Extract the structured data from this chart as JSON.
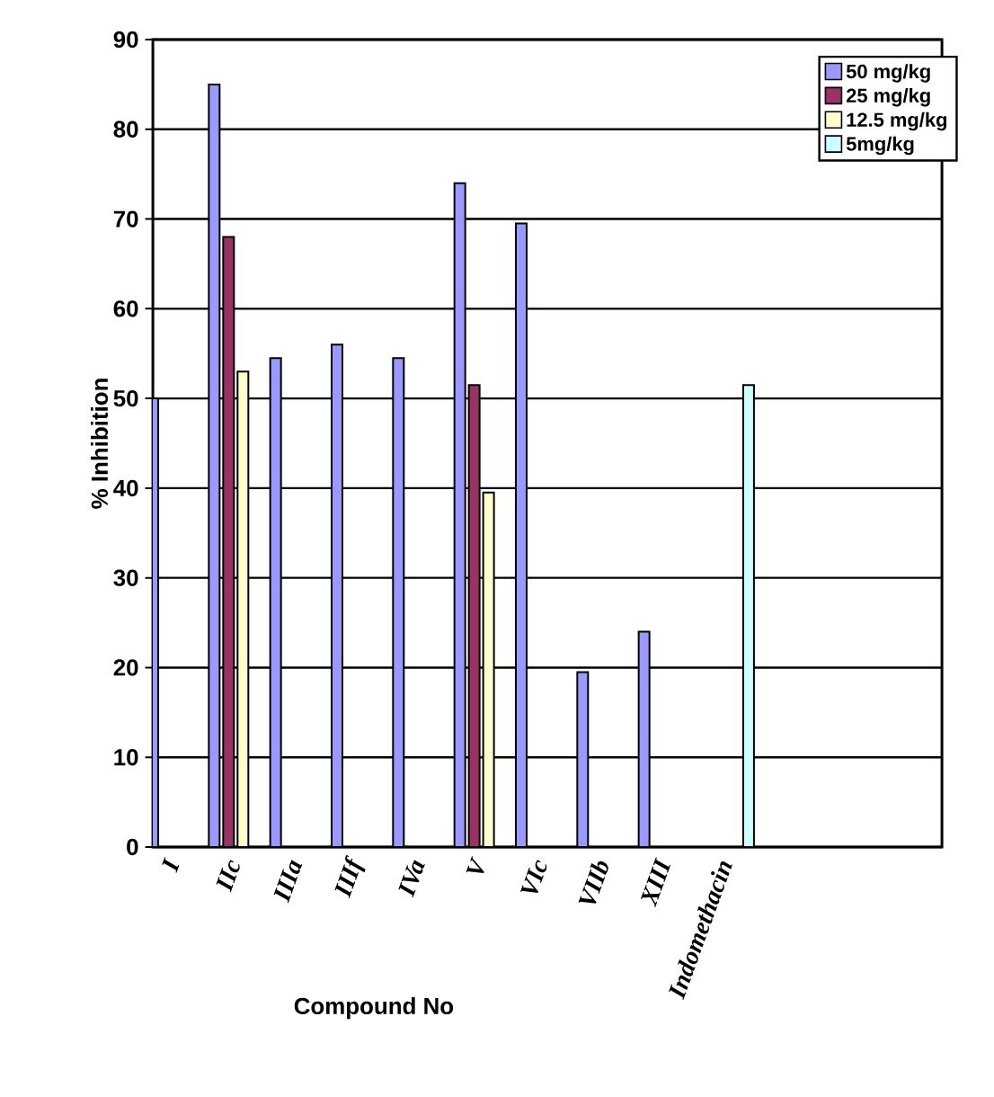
{
  "chart_data": {
    "type": "bar",
    "xlabel": "Compound No",
    "ylabel": "% Inhibition",
    "categories": [
      "I",
      "IIc",
      "IIIa",
      "IIIf",
      "IVa",
      "V",
      "VIc",
      "VIIb",
      "XIII",
      "Indomethacin"
    ],
    "series": [
      {
        "name": "50 mg/kg",
        "color": "#9999ff",
        "values": [
          50,
          85,
          54.5,
          56,
          54.5,
          74,
          69.5,
          19.5,
          24,
          null
        ]
      },
      {
        "name": "25 mg/kg",
        "color": "#993366",
        "values": [
          null,
          68,
          null,
          null,
          null,
          51.5,
          null,
          null,
          null,
          null
        ]
      },
      {
        "name": "12.5 mg/kg",
        "color": "#ffffcc",
        "values": [
          null,
          53,
          null,
          null,
          null,
          39.5,
          null,
          null,
          null,
          null
        ]
      },
      {
        "name": "5mg/kg",
        "color": "#ccffff",
        "values": [
          null,
          null,
          null,
          null,
          null,
          null,
          null,
          null,
          null,
          51.5
        ]
      }
    ],
    "ylim": [
      0,
      90
    ],
    "yticks": [
      0,
      10,
      20,
      30,
      40,
      50,
      60,
      70,
      80,
      90
    ],
    "grid": "y",
    "legend": "top right"
  }
}
